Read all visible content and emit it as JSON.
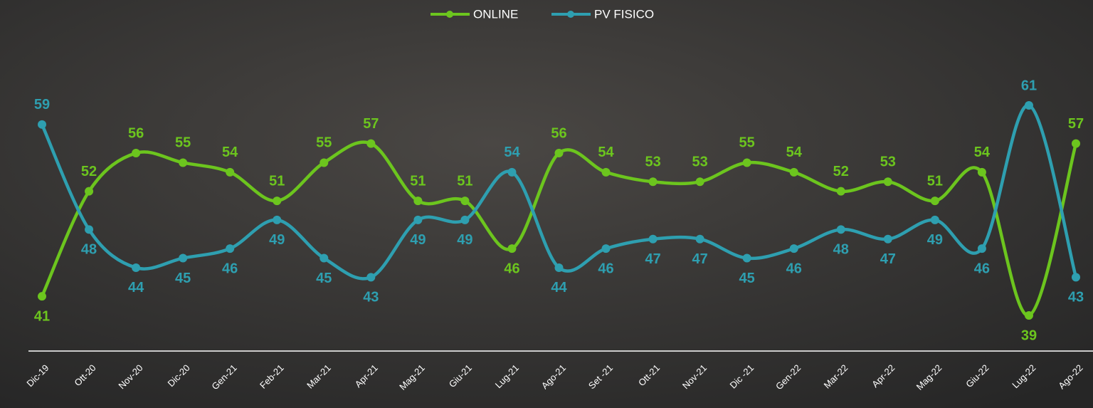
{
  "chart_data": {
    "type": "line",
    "categories": [
      "Dic-19",
      "Ott-20",
      "Nov-20",
      "Dic-20",
      "Gen-21",
      "Feb-21",
      "Mar-21",
      "Apr-21",
      "Mag-21",
      "Giu-21",
      "Lug-21",
      "Ago-21",
      "Set -21",
      "Ott-21",
      "Nov-21",
      "Dic -21",
      "Gen-22",
      "Mar-22",
      "Apr-22",
      "Mag-22",
      "Giu-22",
      "Lug-22",
      "Ago-22"
    ],
    "series": [
      {
        "name": "ONLINE",
        "color": "#6cc51e",
        "values": [
          41,
          52,
          56,
          55,
          54,
          51,
          55,
          57,
          51,
          51,
          46,
          56,
          54,
          53,
          53,
          55,
          54,
          52,
          53,
          51,
          54,
          39,
          57
        ]
      },
      {
        "name": "PV FISICO",
        "color": "#2e9fb0",
        "values": [
          59,
          48,
          44,
          45,
          46,
          49,
          45,
          43,
          49,
          49,
          54,
          44,
          46,
          47,
          47,
          45,
          46,
          48,
          47,
          49,
          46,
          61,
          43
        ]
      }
    ],
    "legend": "top"
  }
}
